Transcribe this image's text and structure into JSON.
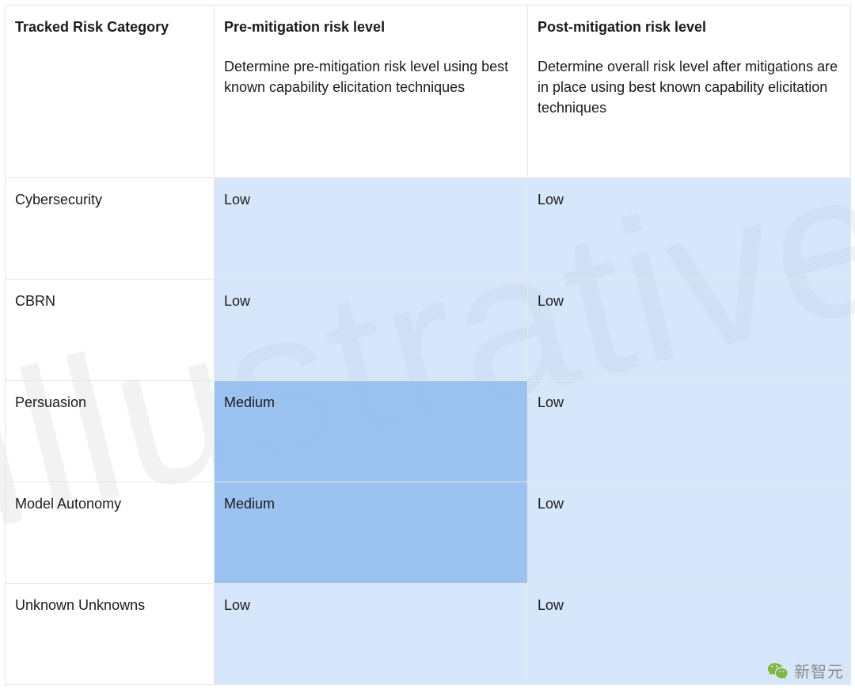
{
  "watermark_text": "Illustrative",
  "colors": {
    "border": "#e6e6e6",
    "text": "#1b1b1b",
    "cell_low_bg": "rgba(182, 212, 248, 0.55)",
    "cell_medium_bg": "rgba(148, 189, 240, 0.92)",
    "watermark": "rgba(0,0,0,0.05)",
    "footer_text": "#8a8a8a",
    "badge_fill": "#7eb63f"
  },
  "table": {
    "columns": [
      {
        "title": "Tracked Risk Category",
        "desc": ""
      },
      {
        "title": "Pre-mitigation risk level",
        "desc": "Determine pre-mitigation risk level using best known capability elicitation techniques"
      },
      {
        "title": "Post-mitigation risk level",
        "desc": "Determine overall risk level after mitigations are in place using best known capability elicitation techniques"
      }
    ],
    "rows": [
      {
        "category": "Cybersecurity",
        "pre": "Low",
        "post": "Low"
      },
      {
        "category": "CBRN",
        "pre": "Low",
        "post": "Low"
      },
      {
        "category": "Persuasion",
        "pre": "Medium",
        "post": "Low"
      },
      {
        "category": "Model Autonomy",
        "pre": "Medium",
        "post": "Low"
      },
      {
        "category": "Unknown Unknowns",
        "pre": "Low",
        "post": "Low"
      }
    ],
    "level_style": {
      "Low": "low",
      "Medium": "med"
    }
  },
  "footer": {
    "label": "新智元"
  }
}
